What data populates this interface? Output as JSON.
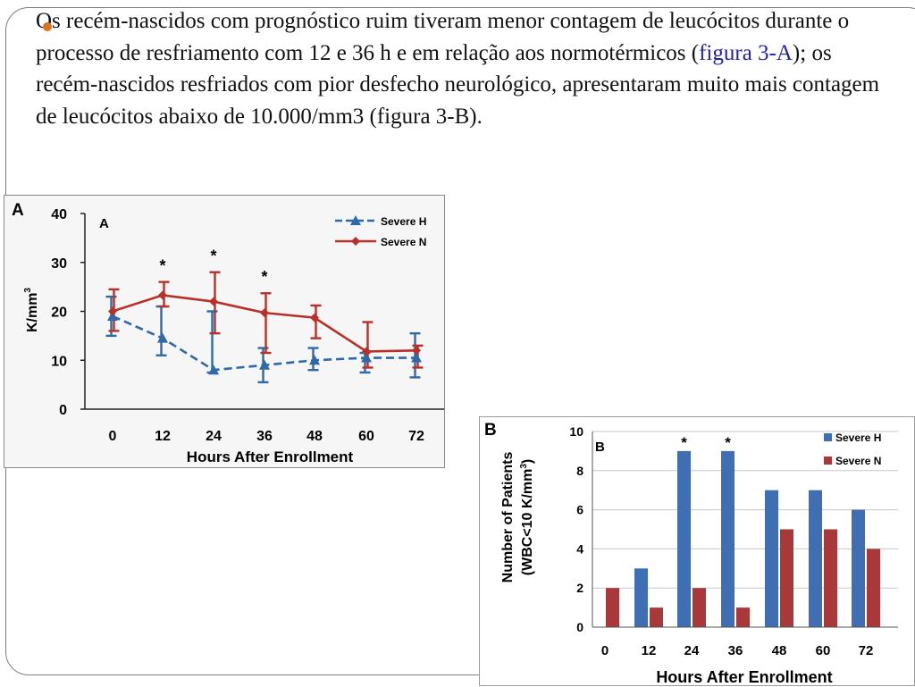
{
  "bullet": {
    "color": "#d9731e",
    "text_before": "Os recém-nascidos com prognóstico ruim tiveram menor contagem de leucócitos durante o processo de resfriamento com 12 e 36 h  e em relação aos normotérmicos (",
    "link_text": "figura 3-A",
    "text_after": "); os recém-nascidos resfriados com pior desfecho neurológico, apresentaram muito mais contagem de leucócitos abaixo de 10.000/mm3 (figura 3-B)."
  },
  "chart_data": [
    {
      "type": "line",
      "panel_letter": "A",
      "inner_label": "A",
      "ylabel": "K/mm",
      "ylabel_sup": "3",
      "xlabel": "Hours After Enrollment",
      "x": [
        0,
        12,
        24,
        36,
        48,
        60,
        72
      ],
      "x_tick_labels": [
        "0",
        "12",
        "24",
        "36",
        "48",
        "60",
        "72"
      ],
      "ylim": [
        0,
        40
      ],
      "y_ticks": [
        0,
        10,
        20,
        30,
        40
      ],
      "grid": false,
      "legend_position": "top-right",
      "significance_marker": "*",
      "significant_x": [
        12,
        24,
        36
      ],
      "series": [
        {
          "name": "Severe H",
          "color": "#2e6aaa",
          "style": "dashed",
          "marker": "triangle",
          "values": [
            19,
            14.5,
            8,
            9,
            10,
            10.5,
            10.5
          ],
          "err_upper": [
            23,
            21,
            20,
            12.5,
            12.5,
            11.5,
            15.5
          ],
          "err_lower": [
            15,
            11,
            7.5,
            5.5,
            8,
            7.5,
            6.5
          ]
        },
        {
          "name": "Severe N",
          "color": "#b8302a",
          "style": "solid",
          "marker": "diamond",
          "values": [
            20,
            23.3,
            22,
            19.7,
            18.7,
            11.8,
            12
          ],
          "err_upper": [
            24.5,
            26,
            28,
            23.7,
            21.2,
            17.8,
            13
          ],
          "err_lower": [
            16,
            21,
            15.5,
            11.5,
            14.5,
            8.5,
            8.5
          ]
        }
      ]
    },
    {
      "type": "bar",
      "panel_letter": "B",
      "inner_label": "B",
      "ylabel_line1": "Number of Patients",
      "ylabel_line2": "(WBC<10 K/mm",
      "ylabel_sup": "3",
      "ylabel_close": ")",
      "xlabel": "Hours After Enrollment",
      "categories": [
        "0",
        "12",
        "24",
        "36",
        "48",
        "60",
        "72"
      ],
      "ylim": [
        0,
        10
      ],
      "y_ticks": [
        0,
        2,
        4,
        6,
        8,
        10
      ],
      "grid": true,
      "legend_position": "top-right",
      "significance_marker": "*",
      "significant_categories": [
        "24",
        "36"
      ],
      "series": [
        {
          "name": "Severe H",
          "color": "#3f6fb2",
          "values": [
            0,
            3,
            9,
            9,
            7,
            7,
            6
          ]
        },
        {
          "name": "Severe N",
          "color": "#a8383a",
          "values": [
            2,
            1,
            2,
            1,
            5,
            5,
            4
          ]
        }
      ]
    }
  ]
}
